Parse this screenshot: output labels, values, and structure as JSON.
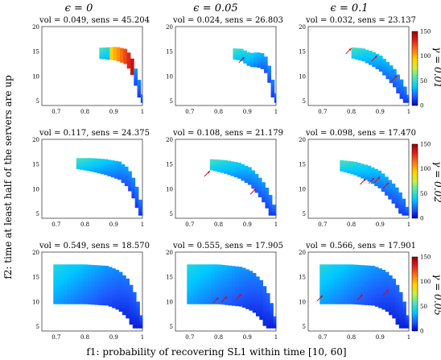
{
  "columns": [
    "ϵ = 0",
    "ϵ = 0.05",
    "ϵ = 0.1"
  ],
  "rows": [
    "γ = 0.01",
    "γ = 0.02",
    "γ = 0.05"
  ],
  "xlabel": "f1: probability of recovering SL1 within time [10, 60]",
  "ylabel": "f2: time at least half of the servers are up",
  "colorbar_ticks": [
    "0",
    "50",
    "100",
    "150"
  ],
  "colorscale": [
    "#0000c8",
    "#1e5aff",
    "#00c8ff",
    "#50e6b4",
    "#c8f03c",
    "#ffd200",
    "#ff7814",
    "#dc1e1e",
    "#960000"
  ],
  "chart_data": [
    {
      "type": "heatmap",
      "row": 0,
      "col": 0,
      "title": "vol = 0.049, sens = 45.204",
      "vol": 0.049,
      "sens": 45.204,
      "xlim": [
        0.65,
        1.0
      ],
      "ylim": [
        4,
        20
      ],
      "xticks": [
        "0.7",
        "0.8",
        "0.9",
        "1"
      ],
      "yticks": [
        "5",
        "10",
        "15",
        "20"
      ],
      "boundary": [
        [
          0.85,
          15.7
        ],
        [
          0.88,
          15.8
        ],
        [
          0.91,
          15.9
        ],
        [
          0.94,
          15.5
        ],
        [
          0.96,
          14.2
        ],
        [
          0.97,
          12.5
        ],
        [
          0.98,
          10.8
        ],
        [
          0.99,
          8.8
        ],
        [
          0.995,
          7.0
        ],
        [
          1.0,
          5.2
        ]
      ],
      "pareto_markers": []
    },
    {
      "type": "heatmap",
      "row": 0,
      "col": 1,
      "title": "vol = 0.024, sens = 26.803",
      "vol": 0.024,
      "sens": 26.803,
      "xlim": [
        0.65,
        1.0
      ],
      "ylim": [
        4,
        20
      ],
      "xticks": [
        "0.7",
        "0.8",
        "0.9",
        "1"
      ],
      "yticks": [
        "5",
        "10",
        "15",
        "20"
      ],
      "boundary": [
        [
          0.85,
          15.6
        ],
        [
          0.88,
          15.5
        ],
        [
          0.91,
          14.6
        ],
        [
          0.935,
          14.8
        ],
        [
          0.96,
          14.5
        ],
        [
          0.975,
          12.3
        ],
        [
          0.985,
          10.0
        ],
        [
          0.992,
          8.2
        ],
        [
          0.997,
          6.5
        ],
        [
          1.0,
          5.2
        ]
      ],
      "pareto_markers": [
        {
          "x": 0.89,
          "y": 13.8
        }
      ]
    },
    {
      "type": "heatmap",
      "row": 0,
      "col": 2,
      "title": "vol = 0.032, sens = 23.137",
      "vol": 0.032,
      "sens": 23.137,
      "xlim": [
        0.65,
        1.0
      ],
      "ylim": [
        4,
        20
      ],
      "xticks": [
        "0.7",
        "0.8",
        "0.9",
        "1"
      ],
      "yticks": [
        "5",
        "10",
        "15",
        "20"
      ],
      "boundary": [
        [
          0.8,
          15.8
        ],
        [
          0.84,
          15.6
        ],
        [
          0.87,
          15.0
        ],
        [
          0.9,
          14.2
        ],
        [
          0.93,
          12.6
        ],
        [
          0.95,
          11.4
        ],
        [
          0.965,
          10.0
        ],
        [
          0.98,
          8.8
        ],
        [
          0.99,
          7.2
        ],
        [
          1.0,
          5.5
        ]
      ],
      "pareto_markers": [
        {
          "x": 0.8,
          "y": 15.6
        },
        {
          "x": 0.89,
          "y": 14.1
        },
        {
          "x": 0.96,
          "y": 10.1
        }
      ]
    },
    {
      "type": "heatmap",
      "row": 1,
      "col": 0,
      "title": "vol = 0.117, sens = 24.375",
      "vol": 0.117,
      "sens": 24.375,
      "xlim": [
        0.65,
        1.0
      ],
      "ylim": [
        4,
        20
      ],
      "xticks": [
        "0.7",
        "0.8",
        "0.9",
        "1"
      ],
      "yticks": [
        "5",
        "10",
        "15",
        "20"
      ],
      "boundary": [
        [
          0.77,
          16.2
        ],
        [
          0.82,
          16.2
        ],
        [
          0.87,
          16.0
        ],
        [
          0.92,
          15.5
        ],
        [
          0.95,
          14.2
        ],
        [
          0.97,
          12.0
        ],
        [
          0.985,
          9.6
        ],
        [
          0.993,
          7.5
        ],
        [
          1.0,
          5.3
        ]
      ],
      "pareto_markers": []
    },
    {
      "type": "heatmap",
      "row": 1,
      "col": 1,
      "title": "vol = 0.108, sens = 21.179",
      "vol": 0.108,
      "sens": 21.179,
      "xlim": [
        0.65,
        1.0
      ],
      "ylim": [
        4,
        20
      ],
      "xticks": [
        "0.7",
        "0.8",
        "0.9",
        "1"
      ],
      "yticks": [
        "5",
        "10",
        "15",
        "20"
      ],
      "boundary": [
        [
          0.77,
          16.0
        ],
        [
          0.82,
          15.8
        ],
        [
          0.87,
          15.3
        ],
        [
          0.91,
          14.3
        ],
        [
          0.94,
          12.5
        ],
        [
          0.96,
          11.0
        ],
        [
          0.975,
          9.5
        ],
        [
          0.988,
          7.5
        ],
        [
          1.0,
          5.3
        ]
      ],
      "pareto_markers": [
        {
          "x": 0.77,
          "y": 13.6
        },
        {
          "x": 0.93,
          "y": 10.0
        }
      ]
    },
    {
      "type": "heatmap",
      "row": 1,
      "col": 2,
      "title": "vol = 0.098, sens = 17.470",
      "vol": 0.098,
      "sens": 17.47,
      "xlim": [
        0.65,
        1.0
      ],
      "ylim": [
        4,
        20
      ],
      "xticks": [
        "0.7",
        "0.8",
        "0.9",
        "1"
      ],
      "yticks": [
        "5",
        "10",
        "15",
        "20"
      ],
      "boundary": [
        [
          0.76,
          15.8
        ],
        [
          0.81,
          15.5
        ],
        [
          0.86,
          14.7
        ],
        [
          0.9,
          13.6
        ],
        [
          0.93,
          12.0
        ],
        [
          0.955,
          10.5
        ],
        [
          0.975,
          8.8
        ],
        [
          0.99,
          7.0
        ],
        [
          1.0,
          5.3
        ]
      ],
      "pareto_markers": [
        {
          "x": 0.85,
          "y": 12.0
        },
        {
          "x": 0.88,
          "y": 12.2
        },
        {
          "x": 0.9,
          "y": 12.4
        },
        {
          "x": 0.93,
          "y": 11.2
        }
      ]
    },
    {
      "type": "heatmap",
      "row": 2,
      "col": 0,
      "title": "vol = 0.549, sens = 18.570",
      "vol": 0.549,
      "sens": 18.57,
      "xlim": [
        0.65,
        1.0
      ],
      "ylim": [
        4,
        20
      ],
      "xticks": [
        "0.7",
        "0.8",
        "0.9",
        "1"
      ],
      "yticks": [
        "5",
        "10",
        "15",
        "20"
      ],
      "boundary": [
        [
          0.69,
          17.5
        ],
        [
          0.8,
          17.5
        ],
        [
          0.88,
          17.2
        ],
        [
          0.92,
          16.2
        ],
        [
          0.95,
          14.5
        ],
        [
          0.97,
          12.2
        ],
        [
          0.985,
          9.8
        ],
        [
          0.995,
          7.2
        ],
        [
          1.0,
          5.2
        ]
      ],
      "pareto_markers": []
    },
    {
      "type": "heatmap",
      "row": 2,
      "col": 1,
      "title": "vol = 0.555, sens = 17.905",
      "vol": 0.555,
      "sens": 17.905,
      "xlim": [
        0.65,
        1.0
      ],
      "ylim": [
        4,
        20
      ],
      "xticks": [
        "0.7",
        "0.8",
        "0.9",
        "1"
      ],
      "yticks": [
        "5",
        "10",
        "15",
        "20"
      ],
      "boundary": [
        [
          0.69,
          17.5
        ],
        [
          0.8,
          17.5
        ],
        [
          0.88,
          17.0
        ],
        [
          0.92,
          16.0
        ],
        [
          0.95,
          14.2
        ],
        [
          0.97,
          12.0
        ],
        [
          0.985,
          9.5
        ],
        [
          0.995,
          7.0
        ],
        [
          1.0,
          5.2
        ]
      ],
      "pareto_markers": [
        {
          "x": 0.8,
          "y": 10.8
        },
        {
          "x": 0.83,
          "y": 11.0
        },
        {
          "x": 0.88,
          "y": 11.5
        }
      ]
    },
    {
      "type": "heatmap",
      "row": 2,
      "col": 2,
      "title": "vol = 0.566, sens = 17.901",
      "vol": 0.566,
      "sens": 17.901,
      "xlim": [
        0.65,
        1.0
      ],
      "ylim": [
        4,
        20
      ],
      "xticks": [
        "0.7",
        "0.8",
        "0.9",
        "1"
      ],
      "yticks": [
        "5",
        "10",
        "15",
        "20"
      ],
      "boundary": [
        [
          0.69,
          17.5
        ],
        [
          0.8,
          17.5
        ],
        [
          0.88,
          17.2
        ],
        [
          0.92,
          16.2
        ],
        [
          0.95,
          14.5
        ],
        [
          0.97,
          12.2
        ],
        [
          0.985,
          9.8
        ],
        [
          0.995,
          7.2
        ],
        [
          1.0,
          5.2
        ]
      ],
      "pareto_markers": [
        {
          "x": 0.7,
          "y": 11.2
        },
        {
          "x": 0.84,
          "y": 11.4
        },
        {
          "x": 0.93,
          "y": 12.4
        }
      ]
    }
  ]
}
